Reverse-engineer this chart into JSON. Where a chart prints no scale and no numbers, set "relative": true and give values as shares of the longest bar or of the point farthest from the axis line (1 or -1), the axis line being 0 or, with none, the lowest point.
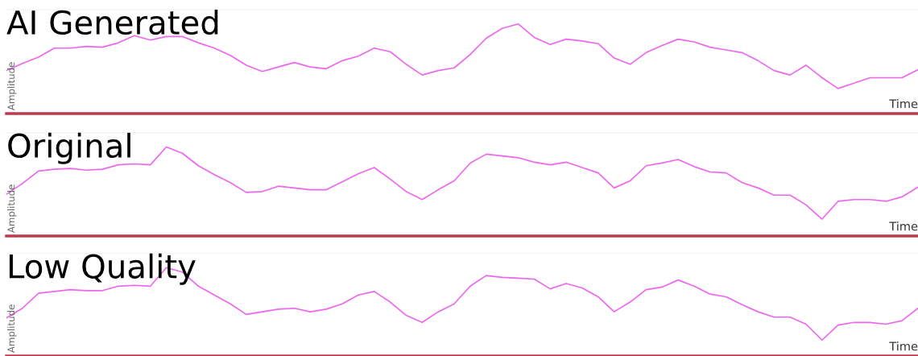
{
  "chart_data": [
    {
      "type": "line",
      "title": "AI Generated",
      "xlabel": "Time",
      "ylabel": "Amplitude",
      "relative": true,
      "categories": [
        null,
        null,
        null,
        null,
        null,
        null,
        null,
        null,
        null,
        null,
        null,
        null,
        null,
        null,
        null,
        null,
        null,
        null,
        null,
        null,
        null,
        null,
        null,
        null,
        null,
        null,
        null,
        null,
        null,
        null,
        null,
        null,
        null,
        null,
        null,
        null,
        null,
        null,
        null,
        null,
        null,
        null,
        null,
        null,
        null,
        null,
        null,
        null,
        null,
        null,
        null,
        null,
        null,
        null,
        null,
        null,
        null,
        null
      ],
      "series": [
        {
          "color": "#ee66ee",
          "values": [
            0.48,
            0.56,
            0.63,
            0.73,
            0.73,
            0.75,
            0.74,
            0.79,
            0.87,
            0.82,
            0.86,
            0.86,
            0.79,
            0.73,
            0.65,
            0.54,
            0.47,
            0.52,
            0.57,
            0.52,
            0.5,
            0.59,
            0.64,
            0.73,
            0.69,
            0.55,
            0.43,
            0.48,
            0.51,
            0.66,
            0.84,
            0.95,
            1.0,
            0.85,
            0.77,
            0.83,
            0.81,
            0.78,
            0.62,
            0.55,
            0.68,
            0.76,
            0.83,
            0.8,
            0.74,
            0.71,
            0.68,
            0.59,
            0.48,
            0.43,
            0.54,
            0.4,
            0.28,
            0.34,
            0.4,
            0.4,
            0.4,
            0.49
          ]
        }
      ]
    },
    {
      "type": "line",
      "title": "Original",
      "xlabel": "Time",
      "ylabel": "Amplitude",
      "relative": true,
      "categories": [
        null,
        null,
        null,
        null,
        null,
        null,
        null,
        null,
        null,
        null,
        null,
        null,
        null,
        null,
        null,
        null,
        null,
        null,
        null,
        null,
        null,
        null,
        null,
        null,
        null,
        null,
        null,
        null,
        null,
        null,
        null,
        null,
        null,
        null,
        null,
        null,
        null,
        null,
        null,
        null,
        null,
        null,
        null,
        null,
        null,
        null,
        null,
        null,
        null,
        null,
        null,
        null,
        null,
        null,
        null,
        null,
        null,
        null
      ],
      "series": [
        {
          "color": "#ee66ee",
          "values": [
            0.47,
            0.59,
            0.73,
            0.75,
            0.76,
            0.74,
            0.75,
            0.8,
            0.81,
            0.8,
            1.0,
            0.93,
            0.79,
            0.69,
            0.6,
            0.49,
            0.5,
            0.56,
            0.54,
            0.52,
            0.52,
            0.61,
            0.7,
            0.77,
            0.64,
            0.5,
            0.41,
            0.52,
            0.62,
            0.82,
            0.92,
            0.9,
            0.88,
            0.83,
            0.8,
            0.83,
            0.77,
            0.71,
            0.54,
            0.62,
            0.79,
            0.82,
            0.86,
            0.78,
            0.72,
            0.71,
            0.6,
            0.54,
            0.46,
            0.46,
            0.35,
            0.19,
            0.39,
            0.41,
            0.41,
            0.39,
            0.44,
            0.55
          ]
        }
      ]
    },
    {
      "type": "line",
      "title": "Low Quality",
      "xlabel": "Time",
      "ylabel": "Amplitude",
      "relative": true,
      "categories": [
        null,
        null,
        null,
        null,
        null,
        null,
        null,
        null,
        null,
        null,
        null,
        null,
        null,
        null,
        null,
        null,
        null,
        null,
        null,
        null,
        null,
        null,
        null,
        null,
        null,
        null,
        null,
        null,
        null,
        null,
        null,
        null,
        null,
        null,
        null,
        null,
        null,
        null,
        null,
        null,
        null,
        null,
        null,
        null,
        null,
        null,
        null,
        null,
        null,
        null,
        null,
        null,
        null,
        null,
        null,
        null,
        null,
        null
      ],
      "series": [
        {
          "color": "#ee66ee",
          "values": [
            0.43,
            0.54,
            0.71,
            0.73,
            0.75,
            0.74,
            0.74,
            0.79,
            0.8,
            0.79,
            1.0,
            0.95,
            0.79,
            0.69,
            0.59,
            0.47,
            0.5,
            0.53,
            0.54,
            0.5,
            0.53,
            0.59,
            0.69,
            0.73,
            0.61,
            0.46,
            0.38,
            0.5,
            0.59,
            0.79,
            0.91,
            0.89,
            0.88,
            0.87,
            0.76,
            0.82,
            0.77,
            0.67,
            0.5,
            0.61,
            0.75,
            0.78,
            0.86,
            0.79,
            0.7,
            0.67,
            0.58,
            0.5,
            0.44,
            0.44,
            0.36,
            0.18,
            0.35,
            0.38,
            0.38,
            0.36,
            0.4,
            0.54
          ]
        }
      ]
    }
  ]
}
